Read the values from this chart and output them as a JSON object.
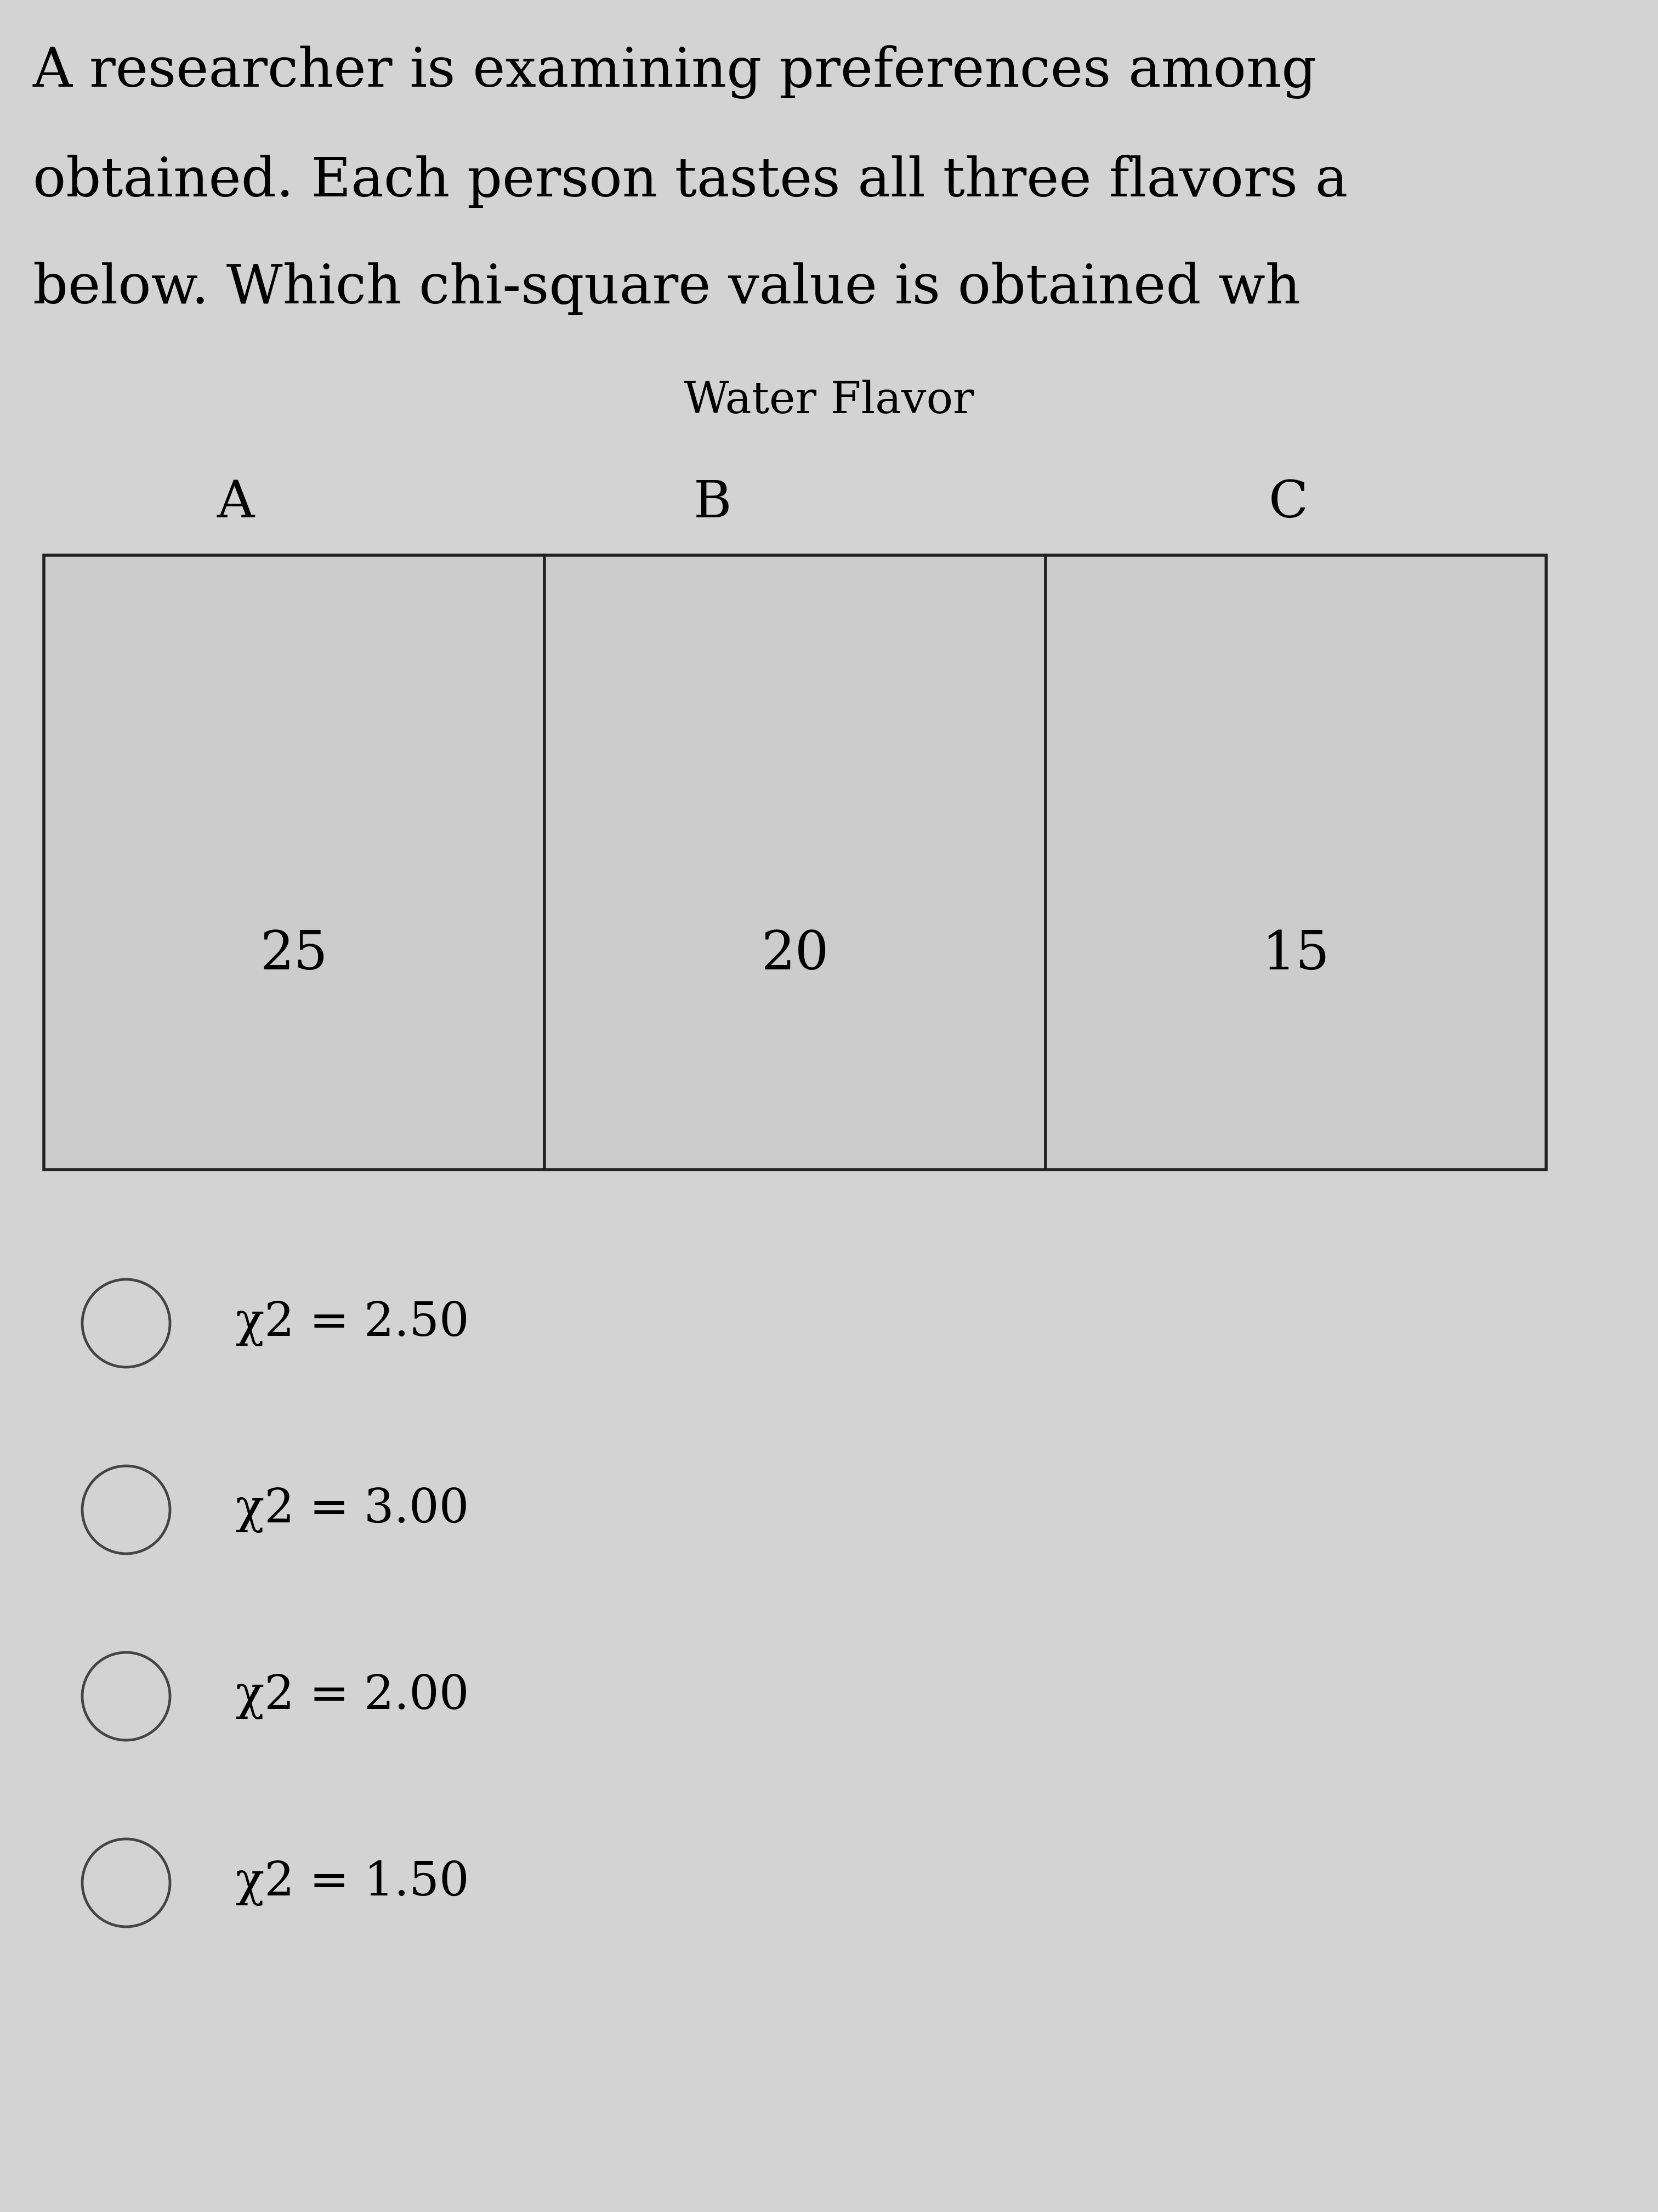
{
  "background_color": "#d3d3d3",
  "title_lines": [
    "A researcher is examining preferences among ",
    "obtained. Each person tastes all three flavors a",
    "below. Which chi-square value is obtained wh "
  ],
  "table_title": "Water Flavor",
  "col_labels": [
    "A",
    "B",
    "C"
  ],
  "values": [
    "25",
    "20",
    "15"
  ],
  "cell_bg": "#cccccc",
  "cell_border_color": "#222222",
  "options": [
    "χ2 = 2.50",
    "χ2 = 3.00",
    "χ2 = 2.00",
    "χ2 = 1.50"
  ],
  "title_fontsize": 72,
  "table_title_fontsize": 58,
  "col_label_fontsize": 68,
  "value_fontsize": 70,
  "option_fontsize": 62,
  "cell_border_lw": 4.0,
  "circle_lw": 3.5
}
